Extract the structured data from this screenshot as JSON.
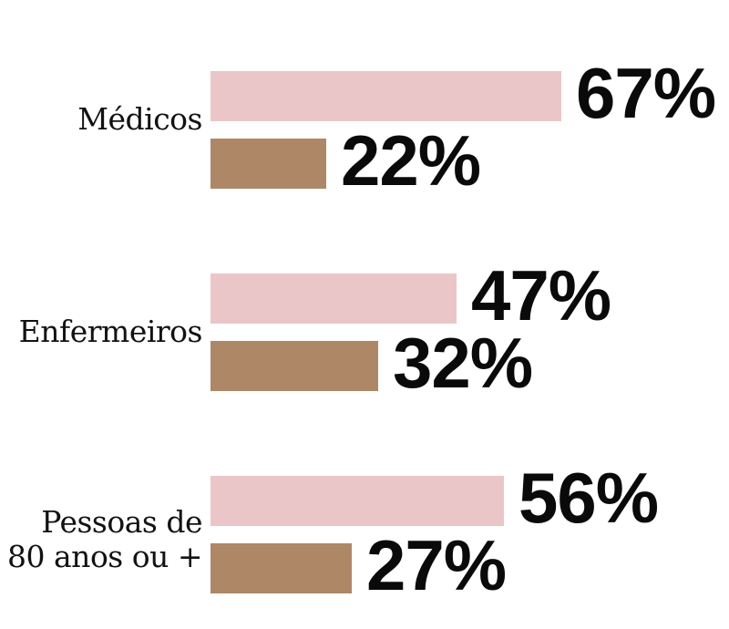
{
  "chart_data": {
    "type": "bar",
    "orientation": "horizontal",
    "categories": [
      "Médicos",
      "Enfermeiros",
      "Pessoas de 80 anos ou +"
    ],
    "series": [
      {
        "color": "#eac6c8",
        "values": [
          67,
          47,
          56
        ]
      },
      {
        "color": "#ae8767",
        "values": [
          22,
          32,
          27
        ]
      }
    ],
    "value_suffix": "%",
    "xlim": [
      0,
      100
    ],
    "grid": false,
    "legend": false,
    "value_labels": [
      "67%",
      "22%",
      "47%",
      "32%",
      "56%",
      "27%"
    ]
  },
  "groups": [
    {
      "label_lines": [
        "Médicos"
      ]
    },
    {
      "label_lines": [
        "Enfermeiros"
      ]
    },
    {
      "label_lines": [
        "Pessoas de",
        "80 anos ou +"
      ]
    }
  ],
  "colors": {
    "background": "#ffffff",
    "text": "#121212",
    "bar_light": "#eac6c8",
    "bar_dark": "#ae8767"
  }
}
